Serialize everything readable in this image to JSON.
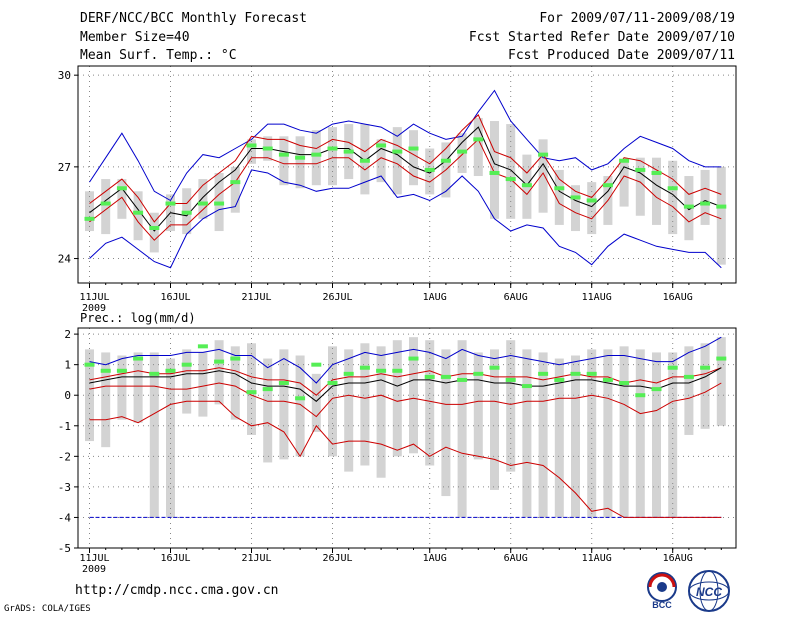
{
  "header": {
    "title": "DERF/NCC/BCC Monthly Forecast",
    "member_size": "Member Size=40",
    "variable": "Mean Surf. Temp.: °C",
    "period": "For 2009/07/11-2009/08/19",
    "started": "Fcst Started Refer Date 2009/07/10",
    "produced": "Fcst Produced Date 2009/07/11"
  },
  "footer": {
    "url": "http://cmdp.ncc.cma.gov.cn",
    "credit": "GrADS: COLA/IGES",
    "logo_left_text": "BCC",
    "logo_right_text": "NCC"
  },
  "colors": {
    "max_min": "#0000cc",
    "spread": "#cc0000",
    "mean": "#000000",
    "box": "#d3d3d3",
    "mark": "#55ee55"
  },
  "chart_data": [
    {
      "type": "line",
      "title": "Mean Surf. Temp.: °C",
      "x_label_year": "2009",
      "x_tick_labels": [
        "11JUL",
        "16JUL",
        "21JUL",
        "26JUL",
        "1AUG",
        "6AUG",
        "11AUG",
        "16AUG"
      ],
      "x_tick_days": [
        0,
        5,
        10,
        15,
        21,
        26,
        31,
        36
      ],
      "y_ticks": [
        24,
        27,
        30
      ],
      "ylim": [
        23.2,
        30.3
      ],
      "days": 40,
      "series": [
        {
          "name": "max",
          "values": [
            26.5,
            27.3,
            28.1,
            27.2,
            26.2,
            25.9,
            26.8,
            27.4,
            27.3,
            27.6,
            27.9,
            28.4,
            28.4,
            28.2,
            28.1,
            28.4,
            28.5,
            28.4,
            28.3,
            28.0,
            28.4,
            28.1,
            27.9,
            28.0,
            28.8,
            29.5,
            28.5,
            27.9,
            27.3,
            27.2,
            27.3,
            26.9,
            27.1,
            27.6,
            28.0,
            27.8,
            27.6,
            27.2,
            27.0,
            27.0
          ]
        },
        {
          "name": "upper",
          "values": [
            25.8,
            26.2,
            26.6,
            26.0,
            25.2,
            25.8,
            25.8,
            26.4,
            26.8,
            27.2,
            28.0,
            27.9,
            27.9,
            27.7,
            27.6,
            27.9,
            27.8,
            27.5,
            27.9,
            27.7,
            27.4,
            27.1,
            27.6,
            28.2,
            28.7,
            27.5,
            27.3,
            26.8,
            27.4,
            26.6,
            26.2,
            26.0,
            26.6,
            27.3,
            27.2,
            26.9,
            26.6,
            26.1,
            26.3,
            26.1
          ]
        },
        {
          "name": "mean",
          "values": [
            25.5,
            25.9,
            26.3,
            25.6,
            24.9,
            25.5,
            25.4,
            26.0,
            26.5,
            26.9,
            27.6,
            27.6,
            27.5,
            27.4,
            27.4,
            27.6,
            27.6,
            27.2,
            27.6,
            27.4,
            27.0,
            26.8,
            27.2,
            27.8,
            28.3,
            27.1,
            26.9,
            26.4,
            27.1,
            26.2,
            25.9,
            25.7,
            26.2,
            27.0,
            26.8,
            26.4,
            26.1,
            25.6,
            25.9,
            25.7
          ]
        },
        {
          "name": "lower",
          "values": [
            25.2,
            25.6,
            26.0,
            25.2,
            24.6,
            25.1,
            25.1,
            25.6,
            26.1,
            26.5,
            27.3,
            27.3,
            27.1,
            27.1,
            27.1,
            27.3,
            27.3,
            26.9,
            27.3,
            27.1,
            26.7,
            26.5,
            26.9,
            27.4,
            27.9,
            26.8,
            26.6,
            26.1,
            26.8,
            25.8,
            25.5,
            25.3,
            25.9,
            26.7,
            26.5,
            26.0,
            25.7,
            25.2,
            25.5,
            25.3
          ]
        },
        {
          "name": "min",
          "values": [
            24.0,
            24.5,
            24.7,
            24.3,
            23.9,
            23.7,
            24.8,
            25.3,
            25.6,
            25.7,
            26.9,
            26.8,
            26.5,
            26.4,
            26.2,
            26.3,
            26.3,
            26.5,
            26.7,
            26.0,
            26.1,
            25.9,
            26.2,
            26.7,
            26.2,
            25.3,
            24.9,
            25.1,
            25.0,
            24.4,
            24.2,
            23.8,
            24.4,
            24.8,
            24.6,
            24.4,
            24.3,
            24.2,
            24.2,
            23.7
          ]
        },
        {
          "name": "ensemble_q_low",
          "values": [
            24.9,
            24.8,
            25.3,
            24.6,
            24.2,
            24.9,
            24.8,
            25.3,
            24.9,
            25.5,
            27.1,
            27.2,
            26.4,
            26.3,
            26.4,
            26.4,
            26.6,
            26.1,
            26.5,
            26.1,
            26.4,
            26.1,
            26.0,
            26.8,
            26.7,
            25.3,
            25.3,
            25.3,
            25.5,
            25.1,
            24.9,
            24.8,
            25.1,
            25.7,
            25.4,
            25.1,
            24.8,
            24.6,
            25.1,
            23.8
          ]
        },
        {
          "name": "ensemble_q_high",
          "values": [
            26.2,
            26.6,
            26.6,
            26.2,
            25.5,
            26.1,
            26.3,
            26.6,
            26.8,
            27.0,
            27.9,
            28.0,
            28.0,
            28.0,
            28.2,
            28.3,
            28.4,
            28.4,
            27.9,
            28.3,
            28.2,
            27.6,
            27.8,
            28.1,
            28.6,
            28.5,
            28.4,
            27.4,
            27.9,
            26.9,
            26.4,
            26.5,
            26.7,
            27.2,
            27.3,
            27.3,
            27.2,
            26.7,
            26.9,
            27.0
          ]
        },
        {
          "name": "ensemble_mark",
          "values": [
            25.3,
            25.8,
            26.3,
            25.5,
            25.0,
            25.8,
            25.5,
            25.8,
            25.8,
            26.5,
            27.7,
            27.6,
            27.4,
            27.3,
            27.4,
            27.6,
            27.5,
            27.2,
            27.7,
            27.5,
            27.6,
            26.9,
            27.2,
            27.5,
            27.9,
            26.8,
            26.6,
            26.4,
            27.4,
            26.3,
            26.0,
            25.9,
            26.4,
            27.2,
            26.9,
            26.8,
            26.3,
            25.7,
            25.8,
            25.7
          ]
        }
      ]
    },
    {
      "type": "line",
      "title": "Prec.: log(mm/d)",
      "x_label_year": "2009",
      "x_tick_labels": [
        "11JUL",
        "16JUL",
        "21JUL",
        "26JUL",
        "1AUG",
        "6AUG",
        "11AUG",
        "16AUG"
      ],
      "x_tick_days": [
        0,
        5,
        10,
        15,
        21,
        26,
        31,
        36
      ],
      "y_ticks": [
        -5,
        -4,
        -3,
        -2,
        -1,
        0,
        1,
        2
      ],
      "ylim": [
        -5,
        2.2
      ],
      "days": 40,
      "series": [
        {
          "name": "max",
          "values": [
            1.1,
            1.0,
            1.2,
            1.3,
            1.3,
            1.3,
            1.4,
            1.4,
            1.5,
            1.3,
            1.3,
            0.9,
            1.2,
            0.9,
            0.4,
            1.0,
            1.2,
            1.4,
            1.3,
            1.4,
            1.5,
            1.4,
            1.2,
            1.5,
            1.3,
            1.2,
            1.3,
            1.2,
            1.1,
            1.0,
            1.1,
            1.2,
            1.3,
            1.3,
            1.2,
            1.1,
            1.1,
            1.4,
            1.6,
            1.9
          ]
        },
        {
          "name": "upper",
          "values": [
            0.5,
            0.6,
            0.7,
            0.8,
            0.7,
            0.7,
            0.8,
            0.8,
            0.9,
            0.8,
            0.6,
            0.5,
            0.5,
            0.4,
            0.0,
            0.5,
            0.6,
            0.6,
            0.7,
            0.6,
            0.7,
            0.8,
            0.6,
            0.7,
            0.7,
            0.6,
            0.6,
            0.6,
            0.5,
            0.6,
            0.7,
            0.6,
            0.6,
            0.4,
            0.5,
            0.4,
            0.6,
            0.6,
            0.7,
            0.9
          ]
        },
        {
          "name": "mean",
          "values": [
            0.4,
            0.5,
            0.6,
            0.6,
            0.6,
            0.6,
            0.7,
            0.7,
            0.8,
            0.7,
            0.4,
            0.3,
            0.3,
            0.2,
            -0.2,
            0.3,
            0.4,
            0.4,
            0.5,
            0.3,
            0.5,
            0.5,
            0.4,
            0.5,
            0.5,
            0.4,
            0.4,
            0.3,
            0.3,
            0.4,
            0.5,
            0.5,
            0.4,
            0.3,
            0.3,
            0.2,
            0.4,
            0.4,
            0.6,
            0.9
          ]
        },
        {
          "name": "lower",
          "values": [
            0.2,
            0.3,
            0.3,
            0.3,
            0.3,
            0.2,
            0.2,
            0.3,
            0.4,
            0.3,
            0.0,
            -0.2,
            -0.2,
            -0.3,
            -0.7,
            -0.1,
            0.0,
            -0.1,
            0.0,
            -0.2,
            -0.1,
            -0.2,
            -0.3,
            -0.3,
            -0.2,
            -0.2,
            -0.3,
            -0.2,
            -0.2,
            -0.1,
            -0.1,
            0.0,
            -0.1,
            -0.3,
            -0.6,
            -0.5,
            -0.2,
            -0.1,
            0.1,
            0.4
          ]
        },
        {
          "name": "min",
          "values": [
            -0.8,
            -0.8,
            -0.7,
            -0.9,
            -0.6,
            -0.3,
            -0.2,
            -0.2,
            -0.2,
            -0.7,
            -1.0,
            -0.9,
            -1.2,
            -2.0,
            -1.0,
            -1.6,
            -1.5,
            -1.5,
            -1.6,
            -1.8,
            -1.6,
            -2.0,
            -1.7,
            -1.9,
            -2.0,
            -2.1,
            -2.3,
            -2.2,
            -2.3,
            -2.7,
            -3.2,
            -3.8,
            -3.7,
            -4.0,
            -4.0,
            -4.0,
            -4.0,
            -4.0,
            -4.0,
            -4.0
          ]
        },
        {
          "name": "floor",
          "values": [
            -4.0,
            -4.0,
            -4.0,
            -4.0,
            -4.0,
            -4.0,
            -4.0,
            -4.0,
            -4.0,
            -4.0,
            -4.0,
            -4.0,
            -4.0,
            -4.0,
            -4.0,
            -4.0,
            -4.0,
            -4.0,
            -4.0,
            -4.0,
            -4.0,
            -4.0,
            -4.0,
            -4.0,
            -4.0,
            -4.0,
            -4.0,
            -4.0,
            -4.0,
            -4.0,
            -4.0,
            -4.0,
            -4.0,
            -4.0,
            -4.0,
            -4.0,
            -4.0,
            -4.0,
            -4.0,
            -4.0
          ]
        },
        {
          "name": "ensemble_q_low",
          "values": [
            -1.5,
            -1.7,
            -0.8,
            -0.9,
            -4.0,
            -4.0,
            -0.6,
            -0.7,
            -0.3,
            -0.8,
            -1.3,
            -2.2,
            -2.1,
            -2.0,
            -1.2,
            -2.0,
            -2.5,
            -2.3,
            -2.7,
            -2.0,
            -1.9,
            -2.3,
            -3.3,
            -4.0,
            -2.1,
            -3.1,
            -2.5,
            -4.0,
            -4.0,
            -4.0,
            -4.0,
            -4.0,
            -4.0,
            -4.0,
            -4.0,
            -4.0,
            -4.0,
            -1.3,
            -1.1,
            -1.0
          ]
        },
        {
          "name": "ensemble_q_high",
          "values": [
            1.5,
            1.4,
            1.3,
            1.4,
            1.4,
            1.2,
            1.5,
            1.4,
            1.8,
            1.6,
            1.7,
            1.2,
            1.5,
            1.3,
            0.7,
            1.6,
            1.5,
            1.7,
            1.6,
            1.8,
            1.9,
            1.8,
            1.5,
            1.8,
            1.4,
            1.5,
            1.8,
            1.5,
            1.4,
            1.2,
            1.3,
            1.5,
            1.5,
            1.6,
            1.5,
            1.4,
            1.4,
            1.6,
            1.7,
            1.9
          ]
        },
        {
          "name": "ensemble_mark",
          "values": [
            1.0,
            0.8,
            0.8,
            1.2,
            0.7,
            0.8,
            1.0,
            1.6,
            1.1,
            1.2,
            0.1,
            0.2,
            0.4,
            -0.1,
            1.0,
            0.4,
            0.7,
            0.9,
            0.8,
            0.8,
            1.2,
            0.6,
            0.6,
            0.5,
            0.7,
            0.9,
            0.5,
            0.3,
            0.7,
            0.5,
            0.7,
            0.7,
            0.5,
            0.4,
            0.0,
            0.2,
            0.9,
            0.6,
            0.9,
            1.2
          ]
        }
      ]
    }
  ]
}
